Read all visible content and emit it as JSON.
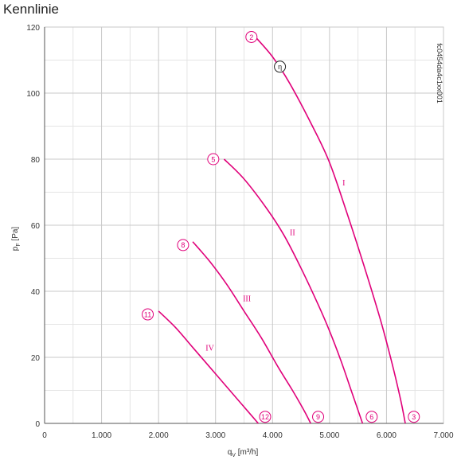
{
  "chart_data": {
    "type": "line",
    "title": "Kennlinie",
    "xlabel": "qV [m³/h]",
    "ylabel": "pF [Pa]",
    "xlabel_main": "q",
    "xlabel_sub": "V",
    "xlabel_unit": " [m³/h]",
    "ylabel_main": "p",
    "ylabel_sub": "F",
    "ylabel_unit": " [Pa]",
    "xlim": [
      0,
      7000
    ],
    "ylim": [
      0,
      120
    ],
    "x_ticks": [
      0,
      1000,
      2000,
      3000,
      4000,
      5000,
      6000,
      7000
    ],
    "x_tick_labels": [
      "0",
      "1.000",
      "2.000",
      "3.000",
      "4.000",
      "5.000",
      "6.000",
      "7.000"
    ],
    "y_ticks": [
      0,
      20,
      40,
      60,
      80,
      100,
      120
    ],
    "y_tick_labels": [
      "0",
      "20",
      "40",
      "60",
      "80",
      "100",
      "120"
    ],
    "grid": true,
    "reference_code": "fc0454da4c1xx001",
    "line_color": "#e0007a",
    "series": [
      {
        "name": "I",
        "label_at": [
          5250,
          72
        ],
        "points": [
          [
            3700,
            117
          ],
          [
            4000,
            111
          ],
          [
            4300,
            103
          ],
          [
            4700,
            90
          ],
          [
            5000,
            79
          ],
          [
            5300,
            64
          ],
          [
            5600,
            48
          ],
          [
            5900,
            31
          ],
          [
            6100,
            18
          ],
          [
            6250,
            7
          ],
          [
            6330,
            0
          ]
        ]
      },
      {
        "name": "II",
        "label_at": [
          4350,
          57
        ],
        "points": [
          [
            3150,
            80
          ],
          [
            3500,
            74
          ],
          [
            3900,
            65
          ],
          [
            4200,
            57
          ],
          [
            4500,
            47
          ],
          [
            4800,
            36
          ],
          [
            5000,
            28
          ],
          [
            5200,
            19
          ],
          [
            5400,
            9
          ],
          [
            5580,
            0
          ]
        ]
      },
      {
        "name": "III",
        "label_at": [
          3550,
          37
        ],
        "points": [
          [
            2600,
            55
          ],
          [
            2900,
            49
          ],
          [
            3200,
            42
          ],
          [
            3500,
            34
          ],
          [
            3800,
            26
          ],
          [
            4100,
            17
          ],
          [
            4350,
            10
          ],
          [
            4550,
            4
          ],
          [
            4670,
            0
          ]
        ]
      },
      {
        "name": "IV",
        "label_at": [
          2900,
          22
        ],
        "points": [
          [
            2000,
            34
          ],
          [
            2300,
            29
          ],
          [
            2600,
            23
          ],
          [
            2900,
            17
          ],
          [
            3200,
            11
          ],
          [
            3450,
            6
          ],
          [
            3650,
            2
          ],
          [
            3750,
            0
          ]
        ]
      }
    ],
    "markers": [
      {
        "label": "2",
        "x": 3630,
        "y": 117,
        "style": "pink"
      },
      {
        "label": "η",
        "x": 4130,
        "y": 108,
        "style": "black"
      },
      {
        "label": "5",
        "x": 2960,
        "y": 80,
        "style": "pink"
      },
      {
        "label": "8",
        "x": 2430,
        "y": 54,
        "style": "pink"
      },
      {
        "label": "11",
        "x": 1810,
        "y": 33,
        "style": "pink"
      },
      {
        "label": "12",
        "x": 3870,
        "y": 2,
        "style": "pink"
      },
      {
        "label": "9",
        "x": 4800,
        "y": 2,
        "style": "pink"
      },
      {
        "label": "6",
        "x": 5740,
        "y": 2,
        "style": "pink"
      },
      {
        "label": "3",
        "x": 6480,
        "y": 2,
        "style": "pink"
      }
    ]
  }
}
